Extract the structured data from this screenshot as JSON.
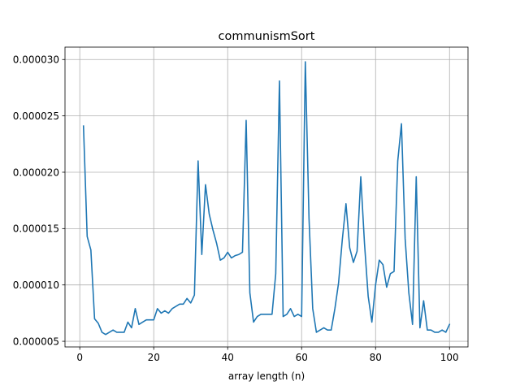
{
  "chart_data": {
    "type": "line",
    "title": "communismSort",
    "xlabel": "array length (n)",
    "ylabel": "",
    "xlim": [
      -4,
      105
    ],
    "ylim": [
      4.5e-06,
      3.11e-05
    ],
    "grid": true,
    "x_ticks": [
      0,
      20,
      40,
      60,
      80,
      100
    ],
    "x_tick_labels": [
      "0",
      "20",
      "40",
      "60",
      "80",
      "100"
    ],
    "y_ticks": [
      5e-06,
      1e-05,
      1.5e-05,
      2e-05,
      2.5e-05,
      3e-05
    ],
    "y_tick_labels": [
      "0.000005",
      "0.000010",
      "0.000015",
      "0.000020",
      "0.000025",
      "0.000030"
    ],
    "colors": {
      "line": "#1f77b4",
      "grid": "#b0b0b0",
      "axes": "#000000"
    },
    "series": [
      {
        "x": [
          1,
          2,
          3,
          4,
          5,
          6,
          7,
          8,
          9,
          10,
          11,
          12,
          13,
          14,
          15,
          16,
          17,
          18,
          19,
          20,
          21,
          22,
          23,
          24,
          25,
          26,
          27,
          28,
          29,
          30,
          31,
          32,
          33,
          34,
          35,
          36,
          37,
          38,
          39,
          40,
          41,
          42,
          43,
          44,
          45,
          46,
          47,
          48,
          49,
          50,
          51,
          52,
          53,
          54,
          55,
          56,
          57,
          58,
          59,
          60,
          61,
          62,
          63,
          64,
          65,
          66,
          67,
          68,
          69,
          70,
          71,
          72,
          73,
          74,
          75,
          76,
          77,
          78,
          79,
          80,
          81,
          82,
          83,
          84,
          85,
          86,
          87,
          88,
          89,
          90,
          91,
          92,
          93,
          94,
          95,
          96,
          97,
          98,
          99,
          100
        ],
        "values": [
          2.41e-05,
          1.43e-05,
          1.31e-05,
          7e-06,
          6.6e-06,
          5.8e-06,
          5.6e-06,
          5.8e-06,
          6e-06,
          5.8e-06,
          5.8e-06,
          5.8e-06,
          6.7e-06,
          6.2e-06,
          7.9e-06,
          6.5e-06,
          6.7e-06,
          6.9e-06,
          6.9e-06,
          6.9e-06,
          7.9e-06,
          7.5e-06,
          7.7e-06,
          7.5e-06,
          7.9e-06,
          8.1e-06,
          8.3e-06,
          8.3e-06,
          8.8e-06,
          8.4e-06,
          9.1e-06,
          2.1e-05,
          1.27e-05,
          1.89e-05,
          1.63e-05,
          1.49e-05,
          1.37e-05,
          1.22e-05,
          1.24e-05,
          1.29e-05,
          1.24e-05,
          1.26e-05,
          1.27e-05,
          1.29e-05,
          2.46e-05,
          9.3e-06,
          6.7e-06,
          7.2e-06,
          7.4e-06,
          7.4e-06,
          7.4e-06,
          7.4e-06,
          1.1e-05,
          2.81e-05,
          7.2e-06,
          7.4e-06,
          7.9e-06,
          7.2e-06,
          7.4e-06,
          7.2e-06,
          2.98e-05,
          1.59e-05,
          7.9e-06,
          5.8e-06,
          6e-06,
          6.2e-06,
          6e-06,
          6e-06,
          7.9e-06,
          1.02e-05,
          1.4e-05,
          1.72e-05,
          1.33e-05,
          1.2e-05,
          1.3e-05,
          1.96e-05,
          1.37e-05,
          9e-06,
          6.7e-06,
          1e-05,
          1.22e-05,
          1.18e-05,
          9.8e-06,
          1.1e-05,
          1.12e-05,
          2.1e-05,
          2.43e-05,
          1.41e-05,
          9.3e-06,
          6.5e-06,
          1.96e-05,
          6.2e-06,
          8.6e-06,
          6e-06,
          6e-06,
          5.8e-06,
          5.8e-06,
          6e-06,
          5.8e-06,
          6.5e-06
        ]
      }
    ]
  }
}
